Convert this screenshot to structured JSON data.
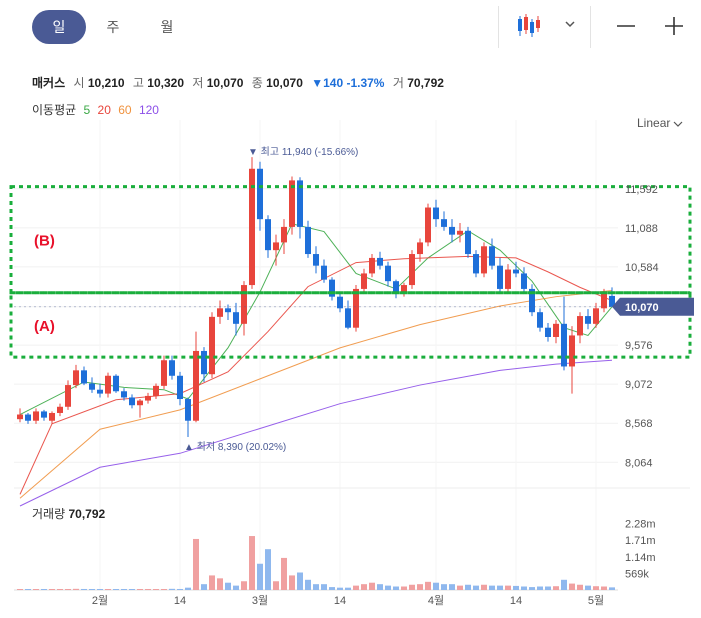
{
  "tabs": [
    {
      "label": "일",
      "active": true
    },
    {
      "label": "주",
      "active": false
    },
    {
      "label": "월",
      "active": false
    }
  ],
  "toolbar": {
    "chart_type_icon": "candlestick-icon",
    "dropdown_icon": "chevron-down-icon",
    "zoom_out_icon": "minus-icon",
    "zoom_in_icon": "plus-icon"
  },
  "stock": {
    "name": "매커스",
    "open_label": "시",
    "open": "10,210",
    "high_label": "고",
    "high": "10,320",
    "low_label": "저",
    "low": "10,070",
    "close_label": "종",
    "close": "10,070",
    "change": "▼140 -1.37%",
    "volume_label": "거",
    "volume": "70,792"
  },
  "ma": {
    "label": "이동평균",
    "items": [
      {
        "period": "5",
        "color": "#3aa845"
      },
      {
        "period": "20",
        "color": "#e8453c"
      },
      {
        "period": "60",
        "color": "#f0923e"
      },
      {
        "period": "120",
        "color": "#8c4fe8"
      }
    ]
  },
  "scale": {
    "label": "Linear"
  },
  "colors": {
    "up": "#e8453c",
    "down": "#1e6fd9",
    "guide": "#1aae3c",
    "annotation": "#e8102a",
    "price_tag": "#4a5a95"
  },
  "chart_data": {
    "type": "candlestick",
    "y_ticks": [
      "11,592",
      "11,088",
      "10,584",
      "10,070",
      "9,576",
      "9,072",
      "8,568",
      "8,064"
    ],
    "x_ticks": [
      "2월",
      "14",
      "3월",
      "14",
      "4월",
      "14",
      "5월"
    ],
    "ylim": [
      7900,
      12350
    ],
    "current_price": "10,070",
    "high_marker": "최고 11,940 (-15.66%)",
    "low_marker": "최저 8,390 (20.02%)",
    "annotations": {
      "upper_box": "(B)",
      "lower_box": "(A)"
    },
    "upper_box_range": [
      10250,
      11620
    ],
    "lower_box_range": [
      9420,
      10250
    ],
    "candles": [
      [
        8620,
        8760,
        8580,
        8680
      ],
      [
        8680,
        8700,
        8560,
        8600
      ],
      [
        8600,
        8760,
        8560,
        8720
      ],
      [
        8720,
        8740,
        8600,
        8640
      ],
      [
        8600,
        8720,
        8560,
        8700
      ],
      [
        8700,
        8820,
        8660,
        8780
      ],
      [
        8780,
        9120,
        8740,
        9060
      ],
      [
        9060,
        9320,
        9020,
        9250
      ],
      [
        9250,
        9300,
        9060,
        9080
      ],
      [
        9080,
        9160,
        8960,
        9000
      ],
      [
        9000,
        9080,
        8900,
        8950
      ],
      [
        8950,
        9220,
        8900,
        9180
      ],
      [
        9180,
        9200,
        8960,
        8980
      ],
      [
        8980,
        9020,
        8860,
        8900
      ],
      [
        8900,
        8940,
        8760,
        8800
      ],
      [
        8800,
        8880,
        8640,
        8860
      ],
      [
        8860,
        8960,
        8820,
        8920
      ],
      [
        8920,
        9080,
        8880,
        9050
      ],
      [
        9050,
        9440,
        9010,
        9380
      ],
      [
        9380,
        9440,
        9130,
        9180
      ],
      [
        9180,
        9230,
        8800,
        8880
      ],
      [
        8880,
        8900,
        8390,
        8600
      ],
      [
        8600,
        9750,
        8580,
        9500
      ],
      [
        9500,
        9550,
        9100,
        9200
      ],
      [
        9200,
        10000,
        9150,
        9940
      ],
      [
        9940,
        10150,
        9850,
        10050
      ],
      [
        10050,
        10100,
        9900,
        10000
      ],
      [
        10000,
        10120,
        9700,
        9850
      ],
      [
        9850,
        10400,
        9700,
        10350
      ],
      [
        10350,
        12000,
        10300,
        11850
      ],
      [
        11850,
        11940,
        11050,
        11200
      ],
      [
        11200,
        11250,
        10700,
        10800
      ],
      [
        10800,
        11000,
        10600,
        10900
      ],
      [
        10900,
        11200,
        10750,
        11100
      ],
      [
        11100,
        11750,
        11000,
        11700
      ],
      [
        11700,
        11740,
        10950,
        11100
      ],
      [
        11100,
        11180,
        10700,
        10750
      ],
      [
        10750,
        10850,
        10500,
        10600
      ],
      [
        10600,
        10680,
        10380,
        10420
      ],
      [
        10420,
        10450,
        10150,
        10200
      ],
      [
        10200,
        10250,
        10000,
        10050
      ],
      [
        10050,
        10150,
        9780,
        9800
      ],
      [
        9800,
        10350,
        9750,
        10300
      ],
      [
        10300,
        10560,
        10250,
        10500
      ],
      [
        10500,
        10750,
        10450,
        10700
      ],
      [
        10700,
        10780,
        10550,
        10600
      ],
      [
        10600,
        10650,
        10330,
        10400
      ],
      [
        10400,
        10420,
        10180,
        10250
      ],
      [
        10250,
        10380,
        10200,
        10350
      ],
      [
        10350,
        10800,
        10300,
        10750
      ],
      [
        10750,
        10950,
        10650,
        10900
      ],
      [
        10900,
        11400,
        10850,
        11350
      ],
      [
        11350,
        11450,
        11100,
        11200
      ],
      [
        11200,
        11300,
        11050,
        11100
      ],
      [
        11100,
        11200,
        10900,
        11000
      ],
      [
        11000,
        11150,
        10900,
        11050
      ],
      [
        11050,
        11100,
        10700,
        10750
      ],
      [
        10750,
        10800,
        10450,
        10500
      ],
      [
        10500,
        10900,
        10450,
        10850
      ],
      [
        10850,
        10950,
        10550,
        10600
      ],
      [
        10600,
        10700,
        10250,
        10300
      ],
      [
        10300,
        10620,
        10250,
        10550
      ],
      [
        10550,
        10650,
        10450,
        10500
      ],
      [
        10500,
        10580,
        10250,
        10300
      ],
      [
        10300,
        10360,
        9950,
        10000
      ],
      [
        10000,
        10050,
        9750,
        9800
      ],
      [
        9800,
        9860,
        9620,
        9680
      ],
      [
        9680,
        9900,
        9600,
        9850
      ],
      [
        9850,
        10200,
        9250,
        9300
      ],
      [
        9300,
        9820,
        8950,
        9700
      ],
      [
        9700,
        10000,
        9600,
        9950
      ],
      [
        9950,
        10040,
        9780,
        9850
      ],
      [
        9850,
        10120,
        9800,
        10050
      ],
      [
        10050,
        10300,
        10000,
        10250
      ],
      [
        10210,
        10320,
        10070,
        10070
      ]
    ],
    "ma_series": {
      "ma5": [
        [
          0,
          8680
        ],
        [
          8,
          9100
        ],
        [
          13,
          9030
        ],
        [
          18,
          9000
        ],
        [
          21,
          8880
        ],
        [
          26,
          9540
        ],
        [
          30,
          10260
        ],
        [
          34,
          11140
        ],
        [
          38,
          11040
        ],
        [
          42,
          10500
        ],
        [
          47,
          10300
        ],
        [
          51,
          10700
        ],
        [
          56,
          11050
        ],
        [
          60,
          10800
        ],
        [
          64,
          10400
        ],
        [
          68,
          9800
        ],
        [
          71,
          9700
        ],
        [
          74,
          10070
        ]
      ],
      "ma20": [
        [
          0,
          7650
        ],
        [
          4,
          8560
        ],
        [
          12,
          8870
        ],
        [
          20,
          8950
        ],
        [
          26,
          9230
        ],
        [
          31,
          9750
        ],
        [
          36,
          10330
        ],
        [
          42,
          10640
        ],
        [
          48,
          10690
        ],
        [
          56,
          10720
        ],
        [
          62,
          10700
        ],
        [
          66,
          10520
        ],
        [
          70,
          10320
        ],
        [
          74,
          10150
        ]
      ],
      "ma60": [
        [
          0,
          7600
        ],
        [
          10,
          8490
        ],
        [
          20,
          8740
        ],
        [
          30,
          9140
        ],
        [
          40,
          9540
        ],
        [
          50,
          9840
        ],
        [
          60,
          10080
        ],
        [
          67,
          10200
        ],
        [
          74,
          10280
        ]
      ],
      "ma120": [
        [
          0,
          7500
        ],
        [
          10,
          8000
        ],
        [
          20,
          8180
        ],
        [
          30,
          8500
        ],
        [
          40,
          8820
        ],
        [
          50,
          9060
        ],
        [
          60,
          9250
        ],
        [
          67,
          9330
        ],
        [
          74,
          9380
        ]
      ]
    },
    "volume_ticks": [
      "2.28m",
      "1.71m",
      "1.14m",
      "569k"
    ],
    "volume": [
      15,
      20,
      15,
      20,
      25,
      15,
      30,
      40,
      35,
      20,
      20,
      25,
      20,
      20,
      15,
      20,
      20,
      25,
      30,
      40,
      35,
      80,
      1750,
      200,
      500,
      400,
      250,
      150,
      300,
      1850,
      900,
      1400,
      300,
      1100,
      500,
      600,
      350,
      200,
      200,
      100,
      80,
      80,
      150,
      200,
      250,
      200,
      150,
      120,
      120,
      180,
      200,
      280,
      250,
      200,
      200,
      150,
      180,
      150,
      180,
      150,
      150,
      150,
      140,
      120,
      100,
      120,
      120,
      130,
      350,
      220,
      180,
      150,
      130,
      120,
      90
    ]
  },
  "volume_panel": {
    "label": "거래량",
    "value": "70,792"
  }
}
